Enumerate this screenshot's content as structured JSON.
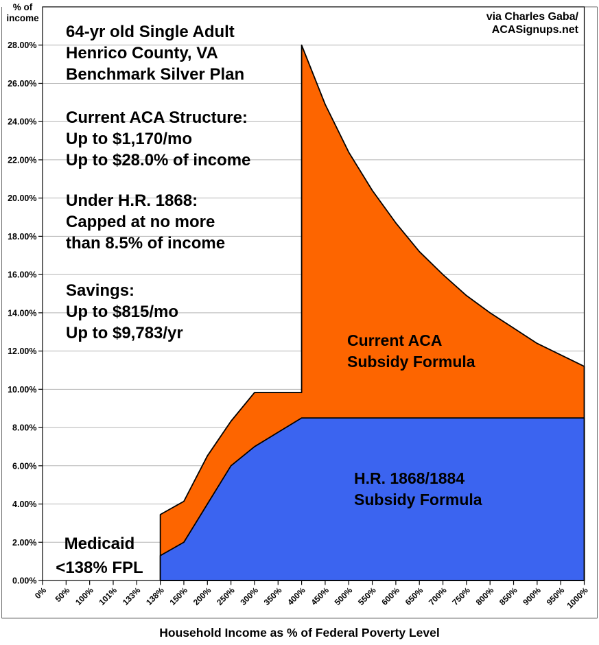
{
  "attribution": {
    "lines": [
      "via Charles Gaba/",
      "ACASignups.net"
    ]
  },
  "annotations": {
    "header": [
      "64-yr old Single Adult",
      "Henrico County, VA",
      "Benchmark Silver Plan"
    ],
    "current_aca": [
      "Current ACA Structure:",
      "Up to $1,170/mo",
      "Up to $28.0% of income"
    ],
    "hr1868": [
      "Under H.R. 1868:",
      "Capped at no more",
      "than 8.5% of income"
    ],
    "savings": [
      "Savings:",
      "Up to $815/mo",
      "Up to $9,783/yr"
    ],
    "medicaid": [
      "Medicaid",
      "<138% FPL"
    ],
    "orange_area_label": [
      "Current ACA",
      "Subsidy Formula"
    ],
    "blue_area_label": [
      "H.R. 1868/1884",
      "Subsidy Formula"
    ]
  },
  "axes": {
    "y_corner_label": [
      "% of",
      "income"
    ],
    "x_title": "Household Income as % of Federal Poverty Level"
  },
  "chart_data": {
    "type": "area",
    "title": "64-yr old Single Adult, Henrico County, VA, Benchmark Silver Plan",
    "xlabel": "Household Income as % of Federal Poverty Level",
    "ylabel": "% of income",
    "x_categories": [
      "0%",
      "50%",
      "100%",
      "101%",
      "133%",
      "138%",
      "150%",
      "200%",
      "250%",
      "300%",
      "350%",
      "400%",
      "450%",
      "500%",
      "550%",
      "600%",
      "650%",
      "700%",
      "750%",
      "800%",
      "850%",
      "900%",
      "950%",
      "1000%"
    ],
    "ylim": [
      0,
      30
    ],
    "yticks": [
      0,
      2,
      4,
      6,
      8,
      10,
      12,
      14,
      16,
      18,
      20,
      22,
      24,
      26,
      28
    ],
    "ytick_format": "0.00%",
    "grid": true,
    "legend_position": "labels inside areas",
    "value_units": "percent of income",
    "no_data_note": "Medicaid <138% FPL (no plotted area below 138% of FPL)",
    "series": [
      {
        "name": "Current ACA Subsidy Formula",
        "color": "#fd6500",
        "draw_order": 1,
        "points": [
          [
            5,
            3.45
          ],
          [
            6,
            4.14
          ],
          [
            7,
            6.52
          ],
          [
            8,
            8.33
          ],
          [
            9,
            9.83
          ],
          [
            10,
            9.83
          ],
          [
            11,
            9.83
          ],
          [
            11,
            28.0
          ],
          [
            12,
            24.9
          ],
          [
            13,
            22.4
          ],
          [
            14,
            20.4
          ],
          [
            15,
            18.7
          ],
          [
            16,
            17.2
          ],
          [
            17,
            16.0
          ],
          [
            18,
            14.9
          ],
          [
            19,
            14.0
          ],
          [
            20,
            13.2
          ],
          [
            21,
            12.4
          ],
          [
            22,
            11.8
          ],
          [
            23,
            11.2
          ]
        ]
      },
      {
        "name": "H.R. 1868/1884 Subsidy Formula",
        "color": "#3b64f0",
        "draw_order": 2,
        "points": [
          [
            5,
            1.3
          ],
          [
            6,
            2.0
          ],
          [
            7,
            4.0
          ],
          [
            8,
            6.0
          ],
          [
            9,
            7.0
          ],
          [
            10,
            7.75
          ],
          [
            11,
            8.5
          ],
          [
            12,
            8.5
          ],
          [
            13,
            8.5
          ],
          [
            14,
            8.5
          ],
          [
            15,
            8.5
          ],
          [
            16,
            8.5
          ],
          [
            17,
            8.5
          ],
          [
            18,
            8.5
          ],
          [
            19,
            8.5
          ],
          [
            20,
            8.5
          ],
          [
            21,
            8.5
          ],
          [
            22,
            8.5
          ],
          [
            23,
            8.5
          ]
        ]
      }
    ],
    "outline_color": "#000000",
    "gridline_color": "#b3b3b3"
  }
}
